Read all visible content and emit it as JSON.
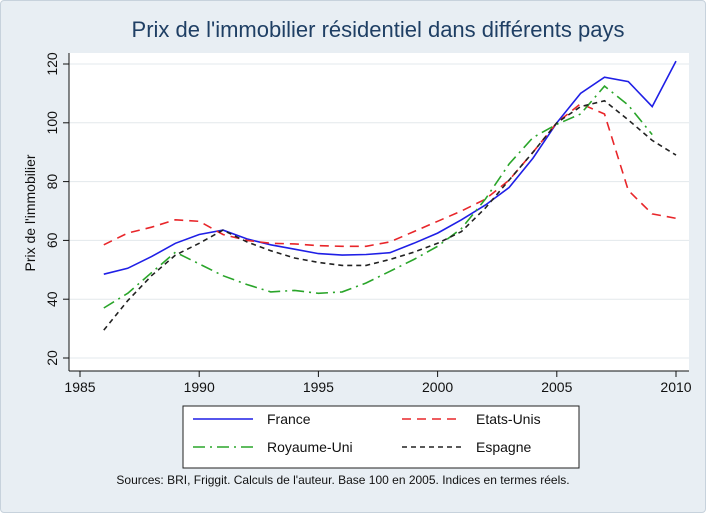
{
  "chart_data": {
    "type": "line",
    "title": "Prix de l'immobilier résidentiel dans différents pays",
    "xlabel": "",
    "ylabel": "Prix de l'immobilier",
    "xlim": [
      1985,
      2010
    ],
    "ylim": [
      20,
      120
    ],
    "xticks": [
      1985,
      1990,
      1995,
      2000,
      2005,
      2010
    ],
    "yticks": [
      20,
      40,
      60,
      80,
      100,
      120
    ],
    "grid": true,
    "legend_position": "bottom",
    "x": [
      1986,
      1987,
      1988,
      1989,
      1990,
      1991,
      1992,
      1993,
      1994,
      1995,
      1996,
      1997,
      1998,
      1999,
      2000,
      2001,
      2002,
      2003,
      2004,
      2005,
      2006,
      2007,
      2008,
      2009,
      2010
    ],
    "series": [
      {
        "name": "France",
        "color": "#1f1fe6",
        "dash": "solid",
        "values": [
          48.5,
          50.5,
          54.5,
          59.0,
          62.0,
          63.5,
          60.5,
          58.5,
          57.0,
          55.5,
          55.0,
          55.2,
          55.8,
          59.0,
          62.5,
          67.0,
          72.0,
          78.0,
          88.0,
          100.0,
          110.0,
          115.5,
          114.0,
          105.5,
          121.0
        ]
      },
      {
        "name": "Etats-Unis",
        "color": "#e8262a",
        "dash": "longdash",
        "values": [
          58.5,
          62.5,
          64.5,
          67.0,
          66.5,
          62.0,
          60.0,
          59.0,
          58.8,
          58.2,
          58.0,
          58.0,
          59.5,
          63.0,
          66.5,
          70.0,
          74.0,
          80.5,
          90.0,
          100.0,
          106.5,
          103.0,
          77.0,
          69.0,
          67.5
        ]
      },
      {
        "name": "Royaume-Uni",
        "color": "#2aa52a",
        "dash": "dashdot",
        "values": [
          37.0,
          42.0,
          49.0,
          56.0,
          52.0,
          48.0,
          45.0,
          42.5,
          43.0,
          42.0,
          42.5,
          45.5,
          49.5,
          53.5,
          58.0,
          64.0,
          74.0,
          86.0,
          95.0,
          99.5,
          103.0,
          112.5,
          106.0,
          96.0,
          null
        ]
      },
      {
        "name": "Espagne",
        "color": "#222222",
        "dash": "shortdash",
        "values": [
          29.5,
          39.5,
          48.0,
          55.0,
          59.0,
          63.5,
          59.5,
          56.5,
          54.0,
          52.5,
          51.5,
          51.5,
          53.5,
          56.0,
          59.0,
          63.0,
          71.0,
          80.5,
          90.0,
          100.0,
          105.5,
          107.5,
          101.0,
          94.0,
          89.0
        ]
      }
    ],
    "source_note": "Sources: BRI, Friggit. Calculs de l'auteur. Base 100 en 2005. Indices en termes réels."
  }
}
